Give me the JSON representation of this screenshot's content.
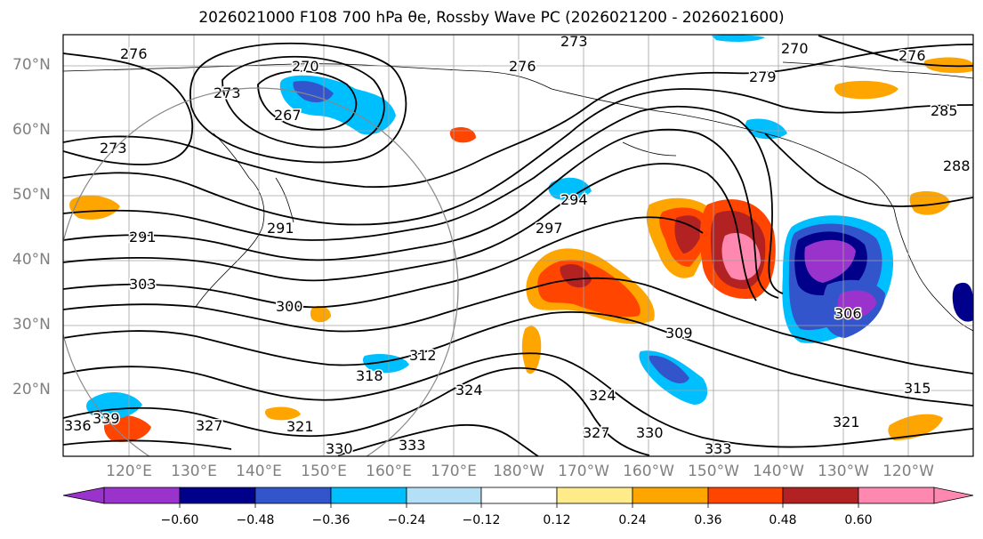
{
  "title": "2026021000 F108 700 hPa θe, Rossby Wave PC (2026021200 - 2026021600)",
  "lat_labels": [
    "70°N",
    "60°N",
    "50°N",
    "40°N",
    "30°N",
    "20°N"
  ],
  "lon_labels": [
    "120°E",
    "130°E",
    "140°E",
    "150°E",
    "160°E",
    "170°E",
    "180°W",
    "170°W",
    "160°W",
    "150°W",
    "140°W",
    "130°W",
    "120°W"
  ],
  "contour_labels": [
    "276",
    "270",
    "273",
    "267",
    "273",
    "276",
    "273",
    "279",
    "270",
    "276",
    "285",
    "288",
    "291",
    "291",
    "297",
    "294",
    "303",
    "300",
    "306",
    "309",
    "312",
    "315",
    "318",
    "321",
    "321",
    "324",
    "324",
    "327",
    "327",
    "330",
    "330",
    "333",
    "333",
    "336",
    "339"
  ],
  "colorbar": {
    "ticks": [
      "−0.60",
      "−0.48",
      "−0.36",
      "−0.24",
      "−0.12",
      "0.12",
      "0.24",
      "0.36",
      "0.48",
      "0.60"
    ],
    "colors": [
      "#9933cc",
      "#00008b",
      "#3355cc",
      "#00bfff",
      "#b3e0f7",
      "#ffffff",
      "#ffeb8a",
      "#ffa500",
      "#ff4500",
      "#b22222",
      "#ff88b0"
    ],
    "under_color": "#9933cc",
    "over_color": "#ff88b0"
  },
  "palette": {
    "purple": "#9933cc",
    "navy": "#00008b",
    "blue": "#3355cc",
    "cyan": "#00bfff",
    "lightblue": "#b3e0f7",
    "yellow": "#ffeb8a",
    "orange": "#ffa500",
    "redorange": "#ff4500",
    "darkred": "#b22222",
    "pink": "#ff88b0"
  }
}
